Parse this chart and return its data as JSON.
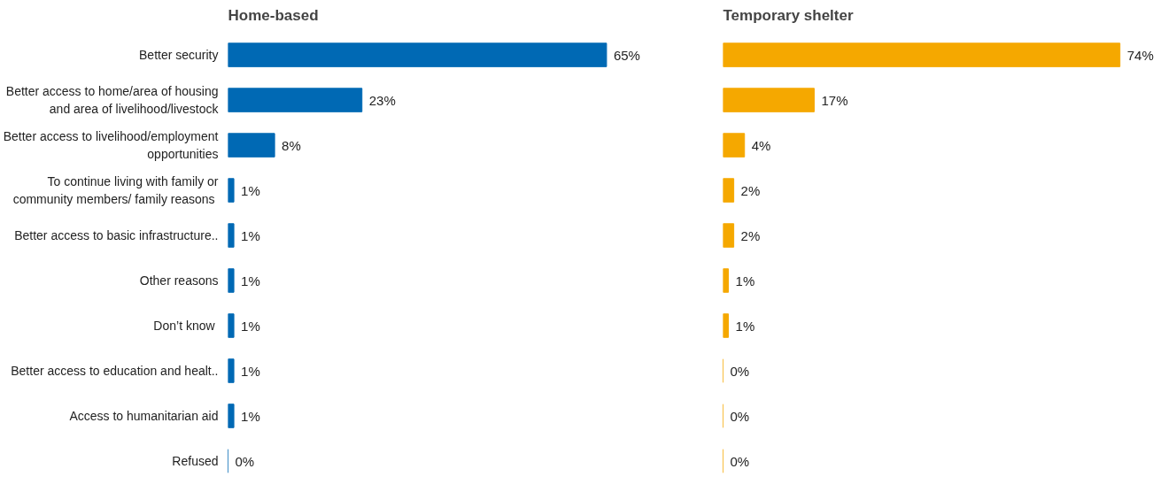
{
  "chart_data": [
    {
      "type": "bar",
      "orientation": "horizontal",
      "title": "Home-based",
      "tick_labels": "y",
      "grid": false,
      "categories": [
        "Better security",
        "Better access to home/area of housing\nand area of livelihood/livestock",
        "Better access to livelihood/employment\nopportunities",
        "To continue living with family or\ncommunity  members/ family reasons",
        "Better access to basic infrastructure..",
        "Other reasons",
        "Don’t know ",
        "Better access to education and healt..",
        "Access to humanitarian aid",
        "Refused"
      ],
      "values": [
        65,
        23,
        8,
        1,
        1,
        1,
        1,
        1,
        1,
        0
      ],
      "value_labels": [
        "65%",
        "23%",
        "8%",
        "1%",
        "1%",
        "1%",
        "1%",
        "1%",
        "1%",
        "0%"
      ],
      "color": "#0069b4"
    },
    {
      "type": "bar",
      "orientation": "horizontal",
      "title": "Temporary shelter",
      "tick_labels": false,
      "grid": false,
      "categories": [
        null,
        null,
        null,
        null,
        null,
        null,
        null,
        null,
        null,
        null
      ],
      "values": [
        74,
        17,
        4,
        2,
        2,
        1,
        1,
        0,
        0,
        0
      ],
      "value_labels": [
        "74%",
        "17%",
        "4%",
        "2%",
        "2%",
        "1%",
        "1%",
        "0%",
        "0%",
        "0%"
      ],
      "color": "#f5a800"
    }
  ]
}
